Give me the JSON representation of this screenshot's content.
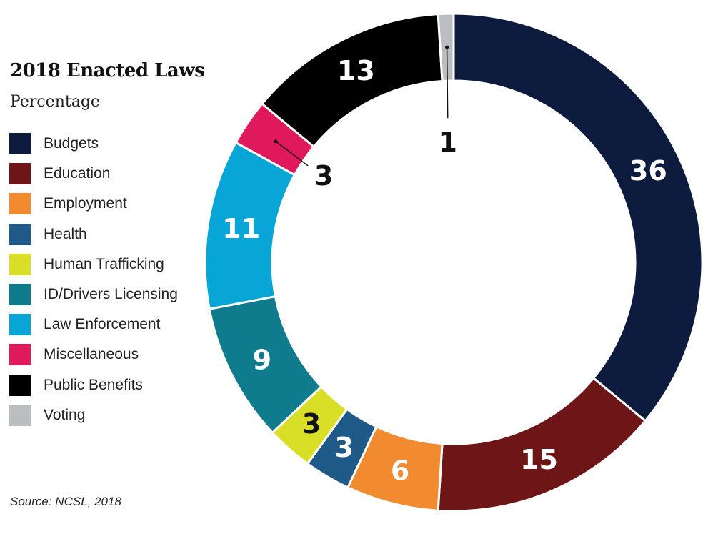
{
  "chart_data": {
    "type": "pie",
    "style": "donut",
    "title": "2018 Enacted Laws",
    "subtitle": "Percentage",
    "unit": "%",
    "categories": [
      "Budgets",
      "Education",
      "Employment",
      "Health",
      "Human Trafficking",
      "ID/Drivers Licensing",
      "Law Enforcement",
      "Miscellaneous",
      "Public Benefits",
      "Voting"
    ],
    "values": [
      36,
      15,
      6,
      3,
      3,
      9,
      11,
      3,
      13,
      1
    ],
    "labels": [
      "36",
      "15",
      "6",
      "3",
      "3",
      "9",
      "11",
      "3",
      "13",
      "1"
    ],
    "colors": [
      "#0d1b3f",
      "#6e1518",
      "#f28a30",
      "#1f5987",
      "#d8df26",
      "#0e7c8c",
      "#08a6d6",
      "#e0185c",
      "#000000",
      "#bcbdc0"
    ],
    "label_colors": [
      "#ffffff",
      "#ffffff",
      "#ffffff",
      "#ffffff",
      "#111111",
      "#ffffff",
      "#ffffff",
      "#111111",
      "#ffffff",
      "#111111"
    ],
    "legend_position": "left",
    "source": "Source: NCSL, 2018"
  }
}
